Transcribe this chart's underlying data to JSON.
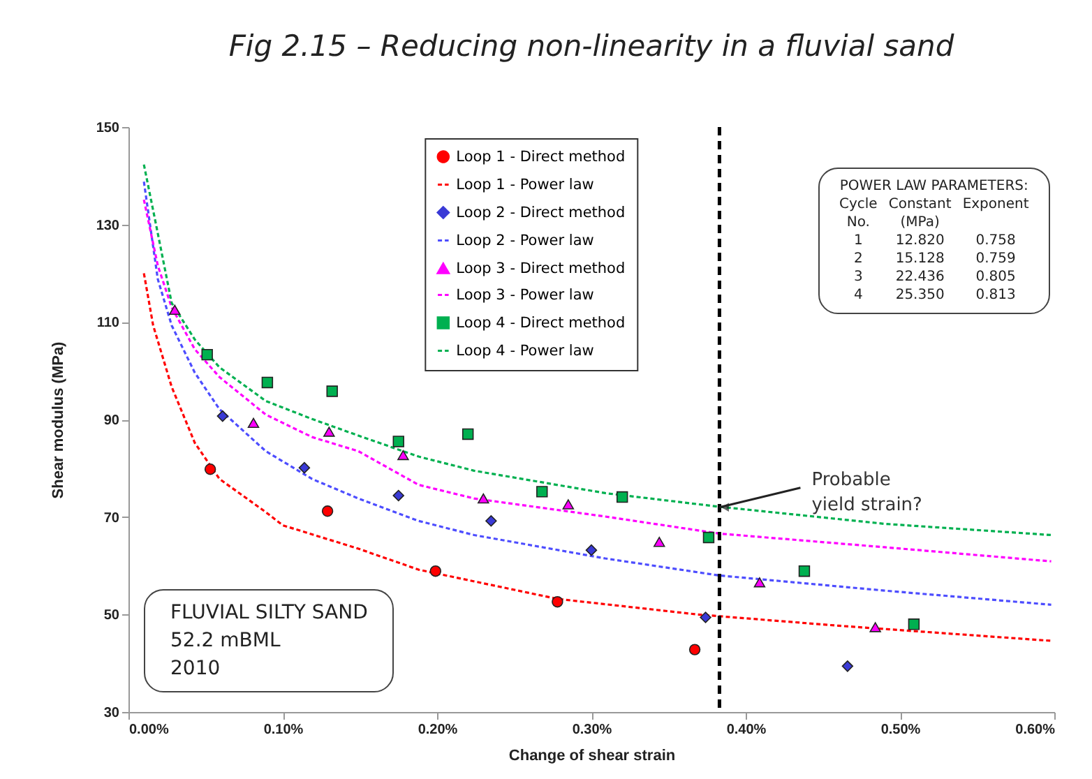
{
  "chart_data": {
    "type": "scatter",
    "title": "Fig 2.15 – Reducing non-linearity in a fluvial sand",
    "xlabel": "Change of shear strain",
    "ylabel": "Shear modulus (MPa)",
    "xlim": [
      0,
      0.6
    ],
    "xticks": [
      {
        "value": 0,
        "label": "0.00%"
      },
      {
        "value": 0.1,
        "label": "0.10%"
      },
      {
        "value": 0.2,
        "label": "0.20%"
      },
      {
        "value": 0.3,
        "label": "0.30%"
      },
      {
        "value": 0.4,
        "label": "0.40%"
      },
      {
        "value": 0.5,
        "label": "0.50%"
      },
      {
        "value": 0.6,
        "label": "0.60%"
      }
    ],
    "ylim": [
      30,
      150
    ],
    "yticks": [
      30,
      50,
      70,
      90,
      110,
      130,
      150
    ],
    "grid": false,
    "legend": "top",
    "series": [
      {
        "name": "Loop 1 - Direct method",
        "marker": "circle",
        "color": "#ff0000",
        "x": [
          0.053,
          0.129,
          0.199,
          0.278,
          0.367
        ],
        "values": [
          79.8,
          71.2,
          58.9,
          52.6,
          42.8
        ]
      },
      {
        "name": "Loop 1 - Power law",
        "type": "line",
        "line_style": "dashed",
        "color": "#ff0000",
        "x": [
          0.01,
          0.016,
          0.028,
          0.043,
          0.059,
          0.089,
          0.1,
          0.149,
          0.188,
          0.278,
          0.369,
          0.46,
          0.598
        ],
        "values": [
          120,
          109.3,
          96.7,
          85.2,
          77.8,
          71,
          68.3,
          63.5,
          59.2,
          53.2,
          50,
          47.7,
          44.6
        ]
      },
      {
        "name": "Loop 2 - Direct method",
        "marker": "diamond",
        "color": "#3a3ad6",
        "x": [
          0.061,
          0.114,
          0.175,
          0.235,
          0.3,
          0.374,
          0.466
        ],
        "values": [
          90.7,
          80.1,
          74.4,
          69.2,
          63.2,
          49.4,
          39.4
        ]
      },
      {
        "name": "Loop 2 - Power law",
        "type": "line",
        "line_style": "dashed",
        "color": "#4d4dff",
        "x": [
          0.01,
          0.019,
          0.028,
          0.043,
          0.059,
          0.089,
          0.119,
          0.149,
          0.188,
          0.224,
          0.309,
          0.383,
          0.49,
          0.598
        ],
        "values": [
          138.8,
          118.8,
          109.3,
          99.6,
          92.1,
          83.5,
          77.8,
          73.8,
          69.2,
          66.3,
          61.5,
          58,
          54.9,
          52
        ]
      },
      {
        "name": "Loop 3 - Direct method",
        "marker": "triangle",
        "color": "#ff00ff",
        "x": [
          0.03,
          0.081,
          0.13,
          0.178,
          0.23,
          0.285,
          0.344,
          0.409,
          0.484
        ],
        "values": [
          112.5,
          89.3,
          87.5,
          82.7,
          73.8,
          72.6,
          64.9,
          56.6,
          47.4
        ]
      },
      {
        "name": "Loop 3 - Power law",
        "type": "line",
        "line_style": "dashed",
        "color": "#ff00ff",
        "x": [
          0.01,
          0.019,
          0.028,
          0.043,
          0.059,
          0.089,
          0.119,
          0.149,
          0.188,
          0.224,
          0.309,
          0.383,
          0.49,
          0.598
        ],
        "values": [
          135.1,
          121.6,
          113,
          104.4,
          98.7,
          91,
          86.4,
          83.5,
          76.6,
          73.8,
          70.1,
          66.6,
          63.8,
          60.9
        ]
      },
      {
        "name": "Loop 4 - Direct method",
        "marker": "square",
        "color": "#00b050",
        "x": [
          0.051,
          0.09,
          0.132,
          0.175,
          0.22,
          0.268,
          0.32,
          0.376,
          0.438,
          0.509
        ],
        "values": [
          103.3,
          97.6,
          95.8,
          85.5,
          87,
          75.2,
          74.1,
          65.8,
          58.9,
          48
        ]
      },
      {
        "name": "Loop 4 - Power law",
        "type": "line",
        "line_style": "dashed",
        "color": "#00b050",
        "x": [
          0.01,
          0.019,
          0.028,
          0.043,
          0.059,
          0.089,
          0.119,
          0.149,
          0.188,
          0.224,
          0.309,
          0.383,
          0.49,
          0.598
        ],
        "values": [
          142.3,
          128.2,
          113.9,
          106.4,
          100.7,
          93.8,
          90.1,
          86.7,
          82.4,
          79.5,
          74.9,
          72.1,
          68.6,
          66.3
        ]
      }
    ],
    "ref_lines": [
      {
        "axis": "x",
        "value": 0.383,
        "color": "#000000",
        "line_style": "dashed"
      }
    ],
    "annotations": [
      {
        "text": "Probable\nyield strain?",
        "x": 0.383,
        "y": 72
      },
      "FLUVIAL SILTY SAND\n52.2 mBML\n2010",
      "POWER LAW PARAMETERS:\nCycle\tConstant\tExponent\nNo.\t(MPa)\t\n1\t12.820\t0.758\n2\t15.128\t0.759\n3\t22.436\t0.805\n4\t25.350\t0.813"
    ]
  }
}
